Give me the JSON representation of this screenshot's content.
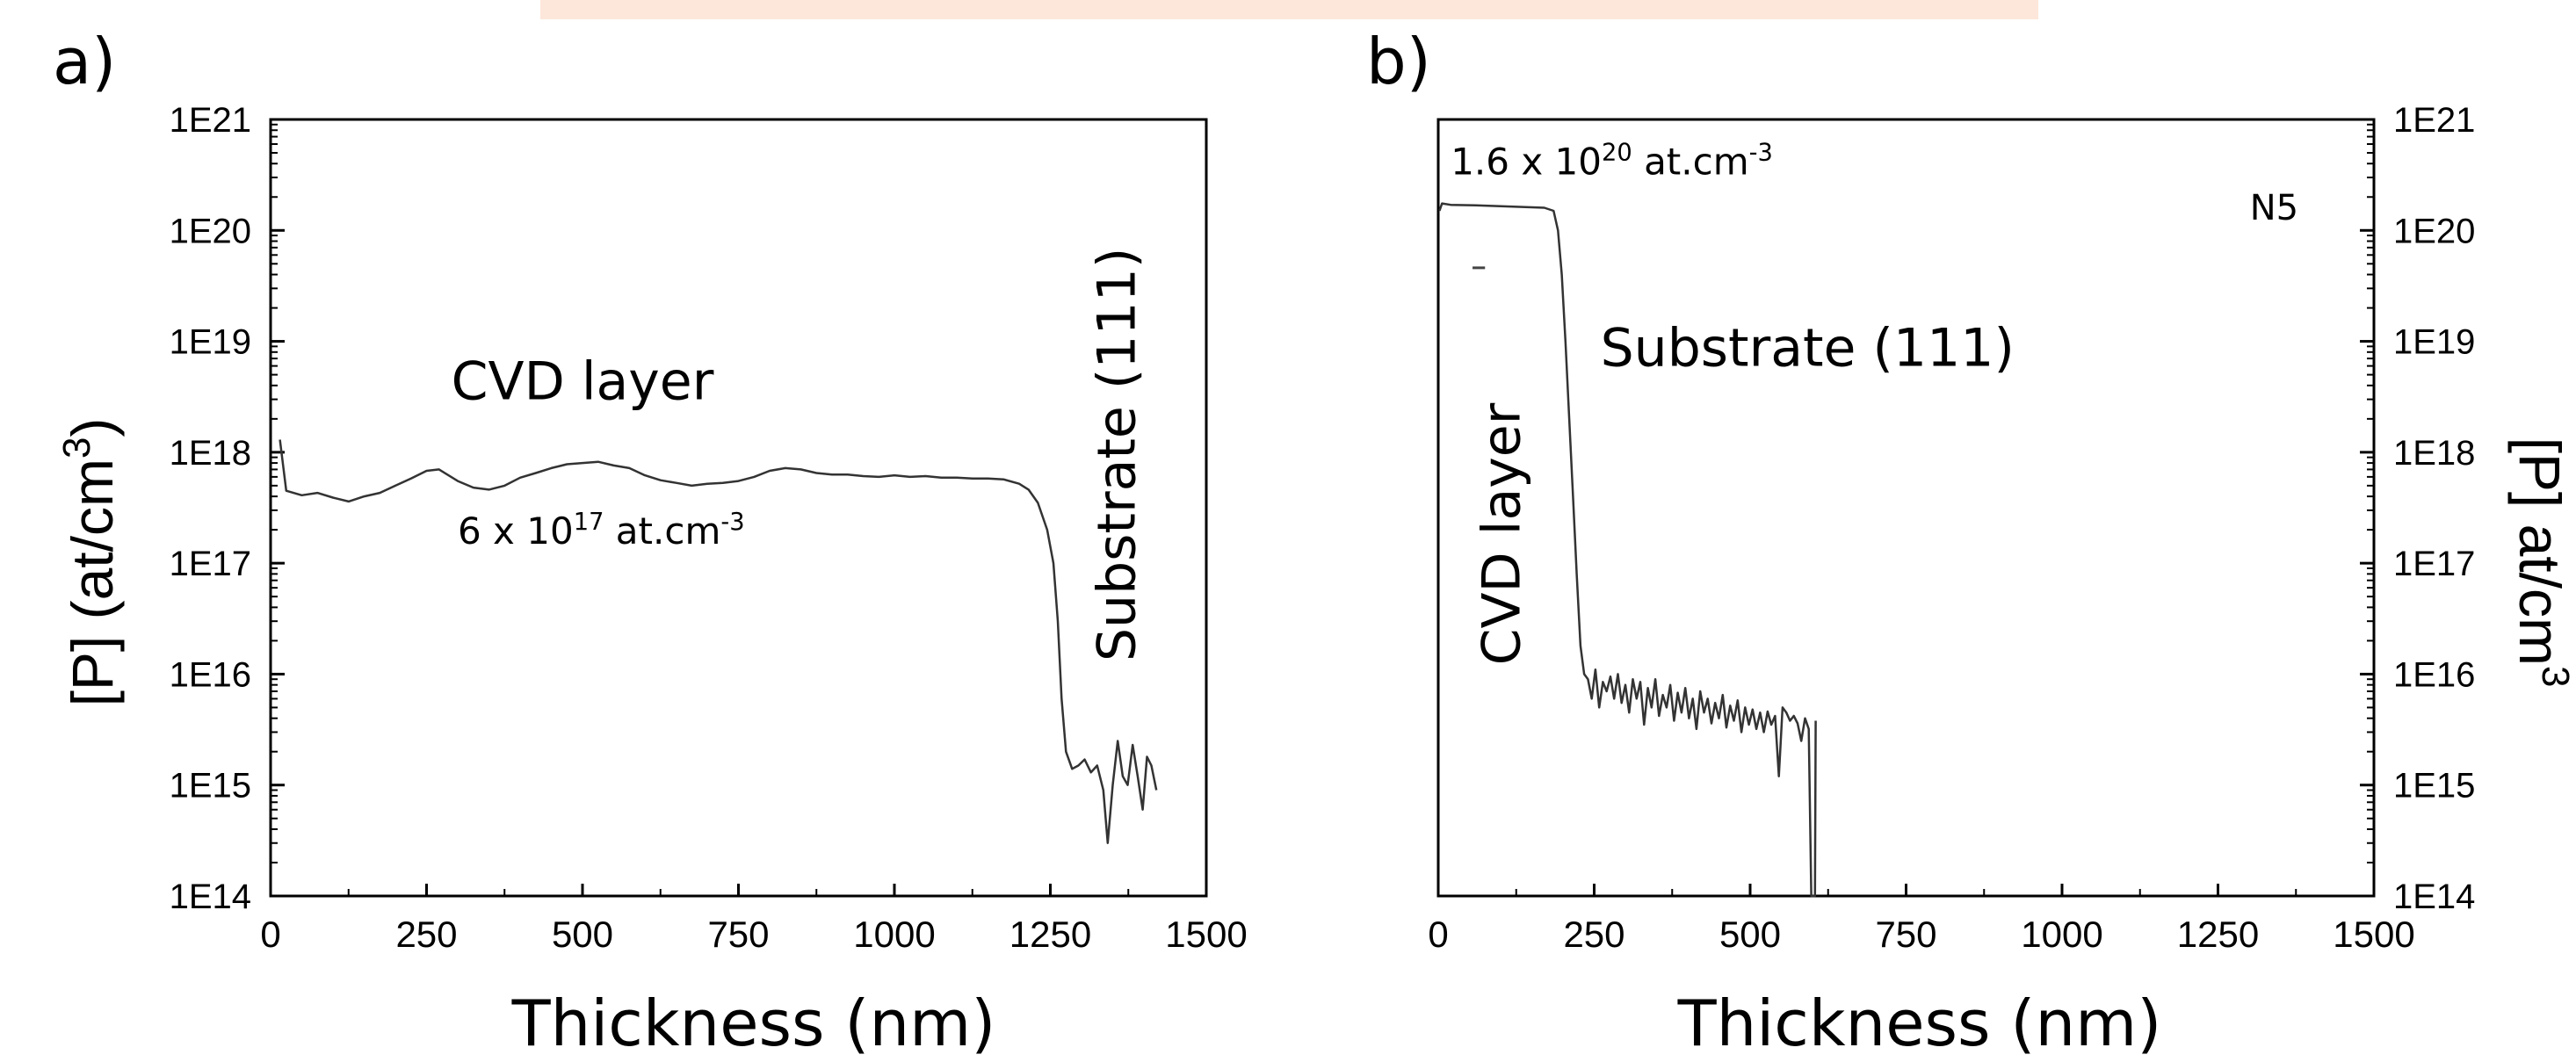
{
  "top_band_color": "#fde7da",
  "chart_data": [
    {
      "panel_label": "a)",
      "type": "line",
      "title": "",
      "xlabel": "Thickness (nm)",
      "ylabel_parts": {
        "main": "[P] (at/cm",
        "sup": "3",
        "tail": ")"
      },
      "xlim": [
        0,
        1500
      ],
      "ylim": [
        100000000000000.0,
        1e+21
      ],
      "yscale": "log",
      "xticks": [
        "0",
        "250",
        "500",
        "750",
        "1000",
        "1250",
        "1500"
      ],
      "yticks": [
        "1E14",
        "1E15",
        "1E16",
        "1E17",
        "1E18",
        "1E19",
        "1E20",
        "1E21"
      ],
      "y_axis_side": "left",
      "series": [
        {
          "color": "#333333",
          "points": [
            [
              15,
              1.3e+18
            ],
            [
              25,
              4.5e+17
            ],
            [
              50,
              4.1e+17
            ],
            [
              75,
              4.3e+17
            ],
            [
              100,
              3.9e+17
            ],
            [
              125,
              3.6e+17
            ],
            [
              150,
              4e+17
            ],
            [
              175,
              4.3e+17
            ],
            [
              200,
              5e+17
            ],
            [
              225,
              5.8e+17
            ],
            [
              250,
              6.8e+17
            ],
            [
              270,
              7e+17
            ],
            [
              300,
              5.5e+17
            ],
            [
              325,
              4.8e+17
            ],
            [
              350,
              4.6e+17
            ],
            [
              375,
              5e+17
            ],
            [
              400,
              5.9e+17
            ],
            [
              425,
              6.5e+17
            ],
            [
              450,
              7.2e+17
            ],
            [
              475,
              7.8e+17
            ],
            [
              500,
              8e+17
            ],
            [
              525,
              8.2e+17
            ],
            [
              550,
              7.6e+17
            ],
            [
              575,
              7.2e+17
            ],
            [
              600,
              6.2e+17
            ],
            [
              625,
              5.6e+17
            ],
            [
              650,
              5.3e+17
            ],
            [
              675,
              5e+17
            ],
            [
              700,
              5.2e+17
            ],
            [
              725,
              5.3e+17
            ],
            [
              750,
              5.5e+17
            ],
            [
              775,
              6e+17
            ],
            [
              800,
              6.8e+17
            ],
            [
              825,
              7.2e+17
            ],
            [
              850,
              7e+17
            ],
            [
              875,
              6.5e+17
            ],
            [
              900,
              6.3e+17
            ],
            [
              925,
              6.3e+17
            ],
            [
              950,
              6.1e+17
            ],
            [
              975,
              6e+17
            ],
            [
              1000,
              6.2e+17
            ],
            [
              1025,
              6e+17
            ],
            [
              1050,
              6.1e+17
            ],
            [
              1075,
              5.9e+17
            ],
            [
              1100,
              5.9e+17
            ],
            [
              1125,
              5.8e+17
            ],
            [
              1150,
              5.8e+17
            ],
            [
              1175,
              5.7e+17
            ],
            [
              1200,
              5.2e+17
            ],
            [
              1215,
              4.6e+17
            ],
            [
              1230,
              3.5e+17
            ],
            [
              1245,
              2e+17
            ],
            [
              1255,
              1e+17
            ],
            [
              1262,
              3e+16
            ],
            [
              1268,
              6000000000000000.0
            ],
            [
              1275,
              2000000000000000.0
            ],
            [
              1285,
              1400000000000000.0
            ],
            [
              1295,
              1500000000000000.0
            ],
            [
              1305,
              1700000000000000.0
            ],
            [
              1315,
              1300000000000000.0
            ],
            [
              1325,
              1500000000000000.0
            ],
            [
              1335,
              900000000000000.0
            ],
            [
              1342,
              300000000000000.0
            ],
            [
              1350,
              1000000000000000.0
            ],
            [
              1358,
              2500000000000000.0
            ],
            [
              1366,
              1200000000000000.0
            ],
            [
              1374,
              1000000000000000.0
            ],
            [
              1382,
              2300000000000000.0
            ],
            [
              1390,
              1200000000000000.0
            ],
            [
              1398,
              600000000000000.0
            ],
            [
              1405,
              1800000000000000.0
            ],
            [
              1412,
              1500000000000000.0
            ],
            [
              1420,
              900000000000000.0
            ]
          ]
        }
      ],
      "annotations": [
        {
          "text": "CVD layer",
          "x": 500,
          "y": 3e+18,
          "rotate": false,
          "size": 60,
          "anchor": "middle"
        },
        {
          "text": "6 x 10",
          "sup": "17",
          "tail": " at.cm",
          "sup2": "-3",
          "x": 530,
          "y": 1.5e+17,
          "rotate": false,
          "size": 42,
          "anchor": "middle"
        },
        {
          "text": "Substrate (111)",
          "x": 1385,
          "y": 1.3e+16,
          "rotate": true,
          "size": 60,
          "anchor": "start"
        }
      ]
    },
    {
      "panel_label": "b)",
      "type": "line",
      "title": "",
      "xlabel": "Thickness (nm)",
      "ylabel_parts": {
        "main": "[P]  at/cm",
        "sup": "3",
        "tail": ""
      },
      "xlim": [
        0,
        1500
      ],
      "ylim": [
        100000000000000.0,
        1e+21
      ],
      "yscale": "log",
      "xticks": [
        "0",
        "250",
        "500",
        "750",
        "1000",
        "1250",
        "1500"
      ],
      "yticks": [
        "1E14",
        "1E15",
        "1E16",
        "1E17",
        "1E18",
        "1E19",
        "1E20",
        "1E21"
      ],
      "y_axis_side": "right",
      "legend_label": "N5",
      "series": [
        {
          "color": "#333333",
          "points": [
            [
              2,
              1.5e+20
            ],
            [
              6,
              1.75e+20
            ],
            [
              20,
              1.7e+20
            ],
            [
              60,
              1.68e+20
            ],
            [
              100,
              1.65e+20
            ],
            [
              140,
              1.62e+20
            ],
            [
              170,
              1.6e+20
            ],
            [
              185,
              1.5e+20
            ],
            [
              192,
              1e+20
            ],
            [
              198,
              4e+19
            ],
            [
              204,
              1e+19
            ],
            [
              210,
              2e+18
            ],
            [
              216,
              4e+17
            ],
            [
              222,
              8e+16
            ],
            [
              228,
              1.8e+16
            ],
            [
              234,
              1e+16
            ],
            [
              240,
              9000000000000000.0
            ],
            [
              246,
              6000000000000000.0
            ],
            [
              252,
              1.1e+16
            ],
            [
              258,
              5000000000000000.0
            ],
            [
              264,
              8500000000000000.0
            ],
            [
              270,
              7000000000000000.0
            ],
            [
              276,
              9500000000000000.0
            ],
            [
              282,
              6000000000000000.0
            ],
            [
              288,
              1e+16
            ],
            [
              294,
              5500000000000000.0
            ],
            [
              300,
              8000000000000000.0
            ],
            [
              306,
              4500000000000000.0
            ],
            [
              312,
              9000000000000000.0
            ],
            [
              318,
              6000000000000000.0
            ],
            [
              324,
              8500000000000000.0
            ],
            [
              330,
              3500000000000000.0
            ],
            [
              336,
              7500000000000000.0
            ],
            [
              342,
              5000000000000000.0
            ],
            [
              348,
              9000000000000000.0
            ],
            [
              354,
              4200000000000000.0
            ],
            [
              360,
              6500000000000000.0
            ],
            [
              366,
              5000000000000000.0
            ],
            [
              372,
              8000000000000000.0
            ],
            [
              378,
              3800000000000000.0
            ],
            [
              384,
              6800000000000000.0
            ],
            [
              390,
              4500000000000000.0
            ],
            [
              396,
              7500000000000000.0
            ],
            [
              402,
              4000000000000000.0
            ],
            [
              408,
              6000000000000000.0
            ],
            [
              414,
              3200000000000000.0
            ],
            [
              420,
              7000000000000000.0
            ],
            [
              426,
              4500000000000000.0
            ],
            [
              432,
              6000000000000000.0
            ],
            [
              438,
              3600000000000000.0
            ],
            [
              444,
              5500000000000000.0
            ],
            [
              450,
              4000000000000000.0
            ],
            [
              456,
              6500000000000000.0
            ],
            [
              462,
              3300000000000000.0
            ],
            [
              468,
              5200000000000000.0
            ],
            [
              474,
              3800000000000000.0
            ],
            [
              480,
              5800000000000000.0
            ],
            [
              486,
              3000000000000000.0
            ],
            [
              492,
              5000000000000000.0
            ],
            [
              498,
              3500000000000000.0
            ],
            [
              504,
              4800000000000000.0
            ],
            [
              510,
              3200000000000000.0
            ],
            [
              516,
              4500000000000000.0
            ],
            [
              522,
              3000000000000000.0
            ],
            [
              528,
              4600000000000000.0
            ],
            [
              534,
              3500000000000000.0
            ],
            [
              540,
              4200000000000000.0
            ],
            [
              546,
              1200000000000000.0
            ],
            [
              552,
              5000000000000000.0
            ],
            [
              558,
              4500000000000000.0
            ],
            [
              564,
              3800000000000000.0
            ],
            [
              570,
              4200000000000000.0
            ],
            [
              576,
              3600000000000000.0
            ],
            [
              582,
              2500000000000000.0
            ],
            [
              588,
              4000000000000000.0
            ],
            [
              594,
              3200000000000000.0
            ],
            [
              598,
              100000000000000.0
            ],
            [
              604,
              100000000000000.0
            ],
            [
              605,
              3800000000000000.0
            ]
          ]
        }
      ],
      "annotations": [
        {
          "text": "1.6 x 10",
          "sup": "20",
          "tail": " at.cm",
          "sup2": "-3",
          "x": 20,
          "y": 3.2e+20,
          "rotate": false,
          "size": 42,
          "anchor": "start"
        },
        {
          "text": "N5",
          "x": 1340,
          "y": 1.25e+20,
          "rotate": false,
          "size": 40,
          "anchor": "middle"
        },
        {
          "text": "Substrate (111)",
          "x": 260,
          "y": 6e+18,
          "rotate": false,
          "size": 60,
          "anchor": "start"
        },
        {
          "text": "CVD layer",
          "x": 130,
          "y": 1.2e+16,
          "rotate": true,
          "size": 60,
          "anchor": "start"
        }
      ]
    }
  ]
}
